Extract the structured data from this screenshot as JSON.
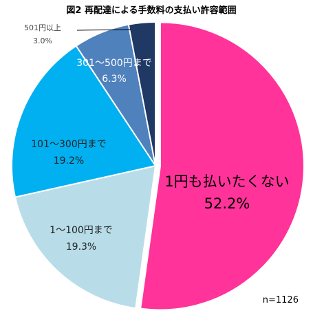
{
  "chart_data": {
    "type": "pie",
    "title": "図2 再配達による手数料の支払い許容範囲",
    "note": "n=1126",
    "slices": [
      {
        "label": "1円も払いたくない",
        "value": "52.2%",
        "percent": 52.2,
        "color": "#ff3399"
      },
      {
        "label": "1～100円まで",
        "value": "19.3%",
        "percent": 19.3,
        "color": "#b8dde9"
      },
      {
        "label": "101～300円まで",
        "value": "19.2%",
        "percent": 19.2,
        "color": "#00b0f0"
      },
      {
        "label": "301～500円まで",
        "value": "6.3%",
        "percent": 6.3,
        "color": "#4f81bd"
      },
      {
        "label": "501円以上",
        "value": "3.0%",
        "percent": 3.0,
        "color": "#1f3864"
      }
    ]
  }
}
